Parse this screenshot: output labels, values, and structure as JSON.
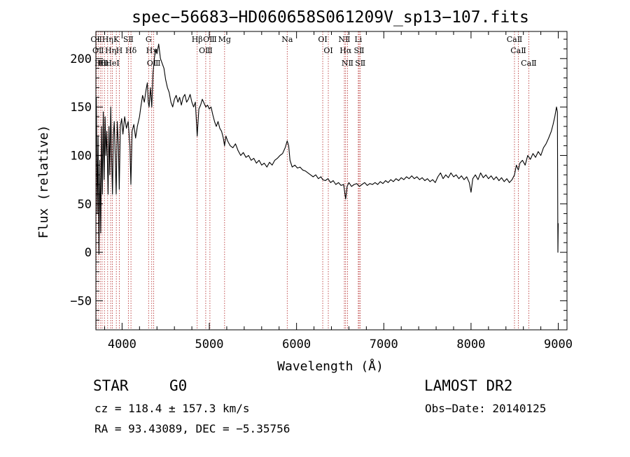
{
  "colors": {
    "foreground": "#000000",
    "reference_line": "#b22222",
    "background": "#ffffff"
  },
  "chart_data": {
    "type": "line",
    "title": "spec−56683−HD060658S061209V_sp13−107.fits",
    "xlabel": "Wavelength (Å)",
    "ylabel": "Flux (relative)",
    "xlim": [
      3700,
      9100
    ],
    "ylim": [
      -80,
      228
    ],
    "x_ticks": [
      4000,
      5000,
      6000,
      7000,
      8000,
      9000
    ],
    "y_ticks": [
      -50,
      0,
      50,
      100,
      150,
      200
    ],
    "x_tick_labels": [
      "4000",
      "5000",
      "6000",
      "7000",
      "8000",
      "9000"
    ],
    "y_tick_labels": [
      "−50",
      "0",
      "50",
      "100",
      "150",
      "200"
    ],
    "grid": false,
    "series": [
      {
        "points": [
          [
            3705,
            160
          ],
          [
            3715,
            40
          ],
          [
            3725,
            120
          ],
          [
            3735,
            -2
          ],
          [
            3745,
            95
          ],
          [
            3755,
            20
          ],
          [
            3765,
            130
          ],
          [
            3775,
            60
          ],
          [
            3785,
            145
          ],
          [
            3795,
            75
          ],
          [
            3805,
            140
          ],
          [
            3815,
            100
          ],
          [
            3825,
            125
          ],
          [
            3840,
            60
          ],
          [
            3850,
            130
          ],
          [
            3860,
            80
          ],
          [
            3870,
            150
          ],
          [
            3880,
            100
          ],
          [
            3890,
            60
          ],
          [
            3900,
            120
          ],
          [
            3910,
            135
          ],
          [
            3920,
            105
          ],
          [
            3933,
            60
          ],
          [
            3945,
            135
          ],
          [
            3958,
            110
          ],
          [
            3968,
            65
          ],
          [
            3980,
            130
          ],
          [
            3995,
            138
          ],
          [
            4010,
            122
          ],
          [
            4030,
            140
          ],
          [
            4050,
            128
          ],
          [
            4070,
            135
          ],
          [
            4090,
            110
          ],
          [
            4101,
            70
          ],
          [
            4115,
            125
          ],
          [
            4135,
            132
          ],
          [
            4155,
            118
          ],
          [
            4175,
            130
          ],
          [
            4200,
            140
          ],
          [
            4215,
            150
          ],
          [
            4235,
            162
          ],
          [
            4255,
            155
          ],
          [
            4275,
            168
          ],
          [
            4290,
            175
          ],
          [
            4300,
            155
          ],
          [
            4310,
            150
          ],
          [
            4325,
            170
          ],
          [
            4340,
            150
          ],
          [
            4355,
            185
          ],
          [
            4370,
            200
          ],
          [
            4385,
            210
          ],
          [
            4400,
            205
          ],
          [
            4420,
            215
          ],
          [
            4440,
            200
          ],
          [
            4460,
            195
          ],
          [
            4480,
            190
          ],
          [
            4500,
            178
          ],
          [
            4520,
            170
          ],
          [
            4540,
            165
          ],
          [
            4560,
            155
          ],
          [
            4580,
            150
          ],
          [
            4600,
            158
          ],
          [
            4620,
            162
          ],
          [
            4640,
            155
          ],
          [
            4660,
            160
          ],
          [
            4680,
            152
          ],
          [
            4700,
            160
          ],
          [
            4720,
            163
          ],
          [
            4740,
            155
          ],
          [
            4760,
            158
          ],
          [
            4780,
            163
          ],
          [
            4800,
            155
          ],
          [
            4820,
            150
          ],
          [
            4840,
            155
          ],
          [
            4861,
            120
          ],
          [
            4880,
            148
          ],
          [
            4900,
            152
          ],
          [
            4920,
            158
          ],
          [
            4940,
            154
          ],
          [
            4960,
            150
          ],
          [
            4980,
            152
          ],
          [
            5000,
            148
          ],
          [
            5020,
            150
          ],
          [
            5040,
            142
          ],
          [
            5060,
            135
          ],
          [
            5080,
            130
          ],
          [
            5100,
            135
          ],
          [
            5120,
            128
          ],
          [
            5140,
            125
          ],
          [
            5160,
            118
          ],
          [
            5175,
            110
          ],
          [
            5190,
            120
          ],
          [
            5210,
            115
          ],
          [
            5240,
            110
          ],
          [
            5270,
            108
          ],
          [
            5300,
            112
          ],
          [
            5330,
            105
          ],
          [
            5360,
            100
          ],
          [
            5390,
            103
          ],
          [
            5420,
            98
          ],
          [
            5450,
            100
          ],
          [
            5480,
            95
          ],
          [
            5510,
            97
          ],
          [
            5540,
            92
          ],
          [
            5570,
            95
          ],
          [
            5600,
            90
          ],
          [
            5630,
            92
          ],
          [
            5660,
            88
          ],
          [
            5690,
            93
          ],
          [
            5720,
            90
          ],
          [
            5750,
            95
          ],
          [
            5780,
            97
          ],
          [
            5810,
            100
          ],
          [
            5840,
            102
          ],
          [
            5870,
            108
          ],
          [
            5893,
            115
          ],
          [
            5910,
            110
          ],
          [
            5925,
            95
          ],
          [
            5950,
            88
          ],
          [
            5980,
            90
          ],
          [
            6010,
            87
          ],
          [
            6040,
            88
          ],
          [
            6070,
            85
          ],
          [
            6100,
            84
          ],
          [
            6130,
            82
          ],
          [
            6160,
            80
          ],
          [
            6190,
            78
          ],
          [
            6220,
            80
          ],
          [
            6250,
            76
          ],
          [
            6280,
            78
          ],
          [
            6300,
            75
          ],
          [
            6330,
            74
          ],
          [
            6360,
            76
          ],
          [
            6390,
            72
          ],
          [
            6420,
            74
          ],
          [
            6450,
            70
          ],
          [
            6480,
            72
          ],
          [
            6510,
            69
          ],
          [
            6540,
            70
          ],
          [
            6563,
            55
          ],
          [
            6580,
            68
          ],
          [
            6600,
            72
          ],
          [
            6630,
            68
          ],
          [
            6660,
            70
          ],
          [
            6690,
            71
          ],
          [
            6720,
            68
          ],
          [
            6750,
            70
          ],
          [
            6780,
            72
          ],
          [
            6810,
            69
          ],
          [
            6840,
            71
          ],
          [
            6870,
            70
          ],
          [
            6900,
            72
          ],
          [
            6930,
            70
          ],
          [
            6960,
            73
          ],
          [
            6990,
            71
          ],
          [
            7020,
            74
          ],
          [
            7050,
            72
          ],
          [
            7080,
            75
          ],
          [
            7110,
            73
          ],
          [
            7140,
            76
          ],
          [
            7170,
            74
          ],
          [
            7200,
            77
          ],
          [
            7230,
            75
          ],
          [
            7260,
            78
          ],
          [
            7290,
            76
          ],
          [
            7320,
            79
          ],
          [
            7350,
            76
          ],
          [
            7380,
            78
          ],
          [
            7410,
            75
          ],
          [
            7440,
            77
          ],
          [
            7470,
            74
          ],
          [
            7500,
            76
          ],
          [
            7530,
            73
          ],
          [
            7560,
            75
          ],
          [
            7590,
            72
          ],
          [
            7620,
            78
          ],
          [
            7650,
            82
          ],
          [
            7680,
            76
          ],
          [
            7710,
            80
          ],
          [
            7740,
            77
          ],
          [
            7770,
            82
          ],
          [
            7800,
            78
          ],
          [
            7830,
            80
          ],
          [
            7860,
            76
          ],
          [
            7890,
            79
          ],
          [
            7920,
            75
          ],
          [
            7950,
            78
          ],
          [
            7980,
            72
          ],
          [
            8000,
            62
          ],
          [
            8020,
            76
          ],
          [
            8050,
            80
          ],
          [
            8080,
            75
          ],
          [
            8110,
            82
          ],
          [
            8140,
            77
          ],
          [
            8170,
            80
          ],
          [
            8200,
            76
          ],
          [
            8230,
            79
          ],
          [
            8260,
            75
          ],
          [
            8290,
            78
          ],
          [
            8320,
            74
          ],
          [
            8350,
            77
          ],
          [
            8380,
            73
          ],
          [
            8410,
            76
          ],
          [
            8440,
            72
          ],
          [
            8470,
            75
          ],
          [
            8498,
            80
          ],
          [
            8520,
            90
          ],
          [
            8542,
            85
          ],
          [
            8560,
            92
          ],
          [
            8590,
            95
          ],
          [
            8620,
            90
          ],
          [
            8650,
            100
          ],
          [
            8680,
            96
          ],
          [
            8710,
            102
          ],
          [
            8740,
            98
          ],
          [
            8770,
            104
          ],
          [
            8800,
            100
          ],
          [
            8830,
            108
          ],
          [
            8860,
            112
          ],
          [
            8890,
            118
          ],
          [
            8920,
            125
          ],
          [
            8940,
            132
          ],
          [
            8960,
            140
          ],
          [
            8980,
            150
          ],
          [
            8990,
            145
          ],
          [
            8996,
            0
          ],
          [
            9000,
            30
          ]
        ]
      }
    ],
    "reference_lines": [
      {
        "x": 3705,
        "labels": [
          "OⅡ"
        ]
      },
      {
        "x": 3726,
        "labels": [
          "OⅡ"
        ]
      },
      {
        "x": 3750,
        "labels": [
          "Hθ"
        ]
      },
      {
        "x": 3771,
        "labels": [
          "Hι"
        ]
      },
      {
        "x": 3798,
        "labels": [
          "Hι"
        ]
      },
      {
        "x": 3835,
        "labels": [
          "Hη"
        ]
      },
      {
        "x": 3869,
        "labels": [
          "Hη"
        ]
      },
      {
        "x": 3889,
        "labels": [
          "HeⅠ"
        ]
      },
      {
        "x": 3934,
        "labels": [
          "K"
        ]
      },
      {
        "x": 3968,
        "labels": [
          "H"
        ]
      },
      {
        "x": 4072,
        "labels": [
          "SⅡ"
        ]
      },
      {
        "x": 4102,
        "labels": [
          "Hδ"
        ]
      },
      {
        "x": 4304,
        "labels": [
          "G"
        ]
      },
      {
        "x": 4340,
        "labels": [
          "Hγ"
        ]
      },
      {
        "x": 4363,
        "labels": [
          "OⅢ"
        ]
      },
      {
        "x": 4861,
        "labels": [
          "Hβ"
        ]
      },
      {
        "x": 4959,
        "labels": [
          "OⅢ"
        ]
      },
      {
        "x": 5007,
        "labels": [
          "OⅢ"
        ]
      },
      {
        "x": 5175,
        "labels": [
          "Mg"
        ]
      },
      {
        "x": 5893,
        "labels": [
          "Na"
        ]
      },
      {
        "x": 6300,
        "labels": [
          "OⅠ"
        ]
      },
      {
        "x": 6364,
        "labels": [
          "OⅠ"
        ]
      },
      {
        "x": 6548,
        "labels": [
          "NⅡ"
        ]
      },
      {
        "x": 6563,
        "labels": [
          "Hα"
        ]
      },
      {
        "x": 6584,
        "labels": [
          "NⅡ"
        ]
      },
      {
        "x": 6708,
        "labels": [
          "Li"
        ]
      },
      {
        "x": 6717,
        "labels": [
          "SⅡ"
        ]
      },
      {
        "x": 6731,
        "labels": [
          "SⅡ"
        ]
      },
      {
        "x": 8498,
        "labels": [
          "CaⅡ"
        ]
      },
      {
        "x": 8542,
        "labels": [
          "CaⅡ"
        ]
      },
      {
        "x": 8662,
        "labels": [
          "CaⅡ"
        ]
      }
    ]
  },
  "footer": {
    "object_class": "STAR",
    "subclass": "G0",
    "survey": "LAMOST DR2",
    "redshift": "cz = 118.4 ± 157.3 km/s",
    "obs_date": "Obs−Date: 20140125",
    "coords": "RA =  93.43089, DEC =  −5.35756"
  }
}
